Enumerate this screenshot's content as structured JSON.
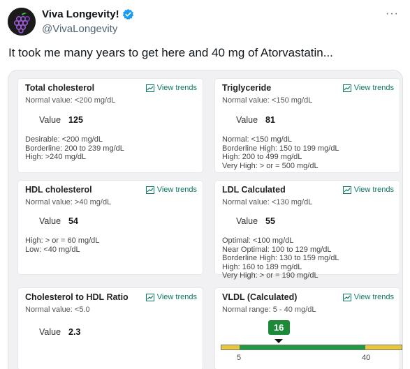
{
  "tweet": {
    "display_name": "Viva Longevity!",
    "handle": "@VivaLongevity",
    "more_label": "···",
    "text": "It took me many years to get here and 40 mg of Atorvastatin..."
  },
  "colors": {
    "accent_green": "#0b7a63",
    "verified_blue": "#1d9bf0",
    "badge_green": "#1d8a3a",
    "bar_yellow": "#e9c53a",
    "bar_green": "#1f9a43"
  },
  "icons": {
    "avatar": "grapes-logo",
    "verified": "verified-badge-icon",
    "trends": "trend-chart-icon"
  },
  "cards": [
    {
      "title": "Total cholesterol",
      "trends_label": "View trends",
      "normal": "Normal value: <200 mg/dL",
      "value_label": "Value",
      "value": "125",
      "ranges": [
        "Desirable: <200 mg/dL",
        "Borderline: 200 to 239 mg/dL",
        "High: >240 mg/dL"
      ]
    },
    {
      "title": "Triglyceride",
      "trends_label": "View trends",
      "normal": "Normal value: <150 mg/dL",
      "value_label": "Value",
      "value": "81",
      "ranges": [
        "Normal: <150 mg/dL",
        "Borderline High: 150 to 199 mg/dL",
        "High: 200 to 499 mg/dL",
        "Very High: > or = 500 mg/dL"
      ]
    },
    {
      "title": "HDL cholesterol",
      "trends_label": "View trends",
      "normal": "Normal value: >40 mg/dL",
      "value_label": "Value",
      "value": "54",
      "ranges": [
        "High: > or = 60 mg/dL",
        "Low: <40 mg/dL"
      ]
    },
    {
      "title": "LDL Calculated",
      "trends_label": "View trends",
      "normal": "Normal value: <130 mg/dL",
      "value_label": "Value",
      "value": "55",
      "ranges": [
        "Optimal: <100 mg/dL",
        "Near Optimal: 100 to 129 mg/dL",
        "Borderline High: 130 to 159 mg/dL",
        "High: 160 to 189 mg/dL",
        "Very High: > or = 190 mg/dL"
      ]
    },
    {
      "title": "Cholesterol to HDL Ratio",
      "trends_label": "View trends",
      "normal": "Normal value: <5.0",
      "value_label": "Value",
      "value": "2.3",
      "ranges": []
    },
    {
      "title": "VLDL (Calculated)",
      "trends_label": "View trends",
      "normal": "Normal range: 5 - 40 mg/dL",
      "value": "16",
      "range_low": "5",
      "range_high": "40",
      "scale_min": 0,
      "scale_max": 50,
      "range_low_value": 5,
      "range_high_value": 40,
      "current_value": 16
    }
  ]
}
